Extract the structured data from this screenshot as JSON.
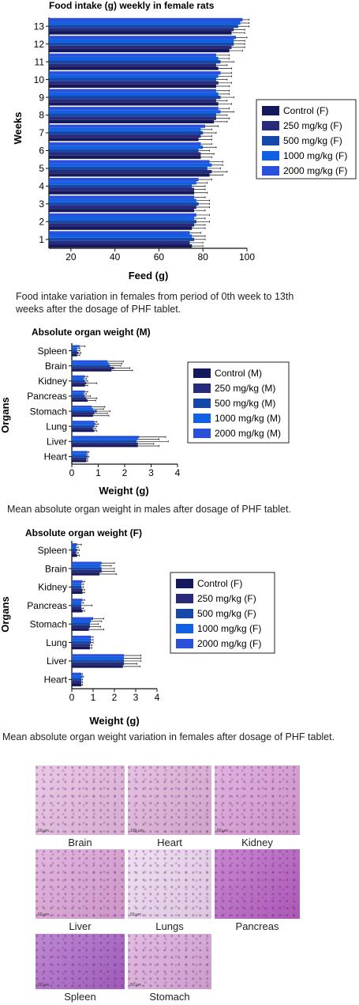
{
  "charts": {
    "food": {
      "title": "Food intake (g) weekly in female rats",
      "xlabel": "Feed (g)",
      "ylabel": "Weeks",
      "xticks": [
        "20",
        "40",
        "60",
        "80",
        "100"
      ],
      "caption": "Food intake variation in females from period of 0th week to 13th weeks after the dosage of PHF tablet."
    },
    "organs_m": {
      "title": "Absolute organ weight (M)",
      "xlabel": "Weight (g)",
      "ylabel": "Organs",
      "xticks": [
        "0",
        "1",
        "2",
        "3",
        "4"
      ],
      "caption": "Mean absolute organ weight in males after dosage of PHF tablet."
    },
    "organs_f": {
      "title": "Absolute organ weight (F)",
      "xlabel": "Weight (g)",
      "ylabel": "Organs",
      "xticks": [
        "0",
        "1",
        "2",
        "3",
        "4"
      ],
      "caption": "Mean absolute organ weight variation in females after dosage of PHF tablet."
    }
  },
  "colors": [
    "#15185a",
    "#2a2a7a",
    "#1548a8",
    "#1060e6",
    "#2a4fd8"
  ],
  "histology": {
    "tiles": [
      {
        "label": "Brain",
        "scale": "50 µm",
        "color": "#e2b8dc"
      },
      {
        "label": "Heart",
        "scale": "100 µm",
        "color": "#dcaed6"
      },
      {
        "label": "Kidney",
        "scale": "50 µm",
        "color": "#d79ad2"
      },
      {
        "label": "Liver",
        "scale": "50 µm",
        "color": "#d99fd2"
      },
      {
        "label": "Lungs",
        "scale": "50 µm",
        "color": "#ead3ec"
      },
      {
        "label": "Pancreas",
        "scale": "",
        "color": "#b55ec0"
      },
      {
        "label": "Spleen",
        "scale": "50 µm",
        "color": "#a761c3"
      },
      {
        "label": "Stomach",
        "scale": "50 µm",
        "color": "#d8a6d6"
      }
    ]
  },
  "chart_data": [
    {
      "type": "bar",
      "orientation": "horizontal",
      "title": "Food intake (g) weekly in female rats",
      "xlabel": "Feed (g)",
      "ylabel": "Weeks",
      "xlim": [
        10,
        100
      ],
      "categories": [
        "1",
        "2",
        "3",
        "4",
        "5",
        "6",
        "7",
        "8",
        "9",
        "10",
        "11",
        "12",
        "13"
      ],
      "legend_position": "right",
      "series": [
        {
          "name": "Control (F)",
          "values": [
            75,
            75,
            76,
            76,
            83,
            79,
            78,
            85,
            87,
            86,
            87,
            92,
            93
          ],
          "errors": [
            5,
            6,
            5,
            6,
            6,
            5,
            6,
            6,
            6,
            6,
            6,
            6,
            6
          ]
        },
        {
          "name": "250 mg/kg (F)",
          "values": [
            74,
            76,
            77,
            76,
            84,
            79,
            79,
            86,
            86,
            87,
            86,
            93,
            94
          ],
          "errors": [
            6,
            5,
            6,
            5,
            7,
            6,
            5,
            6,
            5,
            6,
            5,
            6,
            5
          ]
        },
        {
          "name": "500 mg/kg (F)",
          "values": [
            76,
            77,
            78,
            75,
            82,
            78,
            80,
            86,
            88,
            86,
            88,
            94,
            96
          ],
          "errors": [
            5,
            6,
            5,
            6,
            6,
            5,
            6,
            5,
            6,
            5,
            6,
            5,
            5
          ]
        },
        {
          "name": "1000 mg/kg (F)",
          "values": [
            75,
            76,
            77,
            77,
            84,
            80,
            79,
            88,
            87,
            87,
            87,
            94,
            97
          ],
          "errors": [
            6,
            5,
            6,
            5,
            5,
            6,
            5,
            6,
            5,
            6,
            5,
            5,
            4
          ]
        },
        {
          "name": "2000 mg/kg (F)",
          "values": [
            74,
            77,
            76,
            78,
            83,
            79,
            81,
            87,
            86,
            88,
            86,
            95,
            98
          ],
          "errors": [
            5,
            6,
            5,
            6,
            6,
            5,
            6,
            5,
            6,
            5,
            6,
            5,
            3
          ]
        }
      ]
    },
    {
      "type": "bar",
      "orientation": "horizontal",
      "title": "Absolute organ weight (M)",
      "xlabel": "Weight (g)",
      "ylabel": "Organs",
      "xlim": [
        0,
        4
      ],
      "categories": [
        "Heart",
        "Liver",
        "Lung",
        "Stomach",
        "Pancreas",
        "Kidney",
        "Brain",
        "Spleen"
      ],
      "legend_position": "right",
      "series": [
        {
          "name": "Control (M)",
          "values": [
            0.55,
            2.5,
            0.85,
            0.8,
            0.6,
            0.5,
            1.5,
            0.2
          ],
          "errors": [
            0.05,
            0.8,
            0.1,
            0.6,
            0.3,
            0.1,
            0.8,
            0.1
          ]
        },
        {
          "name": "250 mg/kg (M)",
          "values": [
            0.55,
            2.5,
            0.8,
            0.85,
            0.55,
            0.55,
            1.6,
            0.25
          ],
          "errors": [
            0.05,
            0.6,
            0.1,
            0.5,
            0.4,
            0.4,
            0.6,
            0.1
          ]
        },
        {
          "name": "500 mg/kg (M)",
          "values": [
            0.6,
            2.45,
            0.85,
            0.95,
            0.5,
            0.5,
            1.45,
            0.2
          ],
          "errors": [
            0.05,
            1.2,
            0.1,
            0.5,
            0.2,
            0.1,
            0.4,
            0.1
          ]
        },
        {
          "name": "1000 mg/kg (M)",
          "values": [
            0.55,
            2.5,
            0.9,
            0.8,
            0.45,
            0.45,
            1.4,
            0.2
          ],
          "errors": [
            0.05,
            0.8,
            0.1,
            0.4,
            0.1,
            0.1,
            0.5,
            0.1
          ]
        },
        {
          "name": "2000 mg/kg (M)",
          "values": [
            0.6,
            2.55,
            0.85,
            0.75,
            0.5,
            0.5,
            1.35,
            0.3
          ],
          "errors": [
            0.05,
            1.0,
            0.1,
            0.5,
            0.1,
            0.1,
            0.6,
            0.2
          ]
        }
      ]
    },
    {
      "type": "bar",
      "orientation": "horizontal",
      "title": "Absolute organ weight (F)",
      "xlabel": "Weight (g)",
      "ylabel": "Organs",
      "xlim": [
        0,
        4
      ],
      "categories": [
        "Heart",
        "Liver",
        "Lung",
        "Stomach",
        "Pancreas",
        "Kidney",
        "Brain",
        "Spleen"
      ],
      "legend_position": "right",
      "series": [
        {
          "name": "Control (F)",
          "values": [
            0.45,
            2.4,
            0.85,
            0.8,
            0.5,
            0.5,
            1.3,
            0.25
          ],
          "errors": [
            0.05,
            0.8,
            0.1,
            0.7,
            0.1,
            0.1,
            0.8,
            0.1
          ]
        },
        {
          "name": "250 mg/kg (F)",
          "values": [
            0.45,
            2.45,
            0.85,
            0.85,
            0.45,
            0.5,
            1.4,
            0.2
          ],
          "errors": [
            0.05,
            0.6,
            0.1,
            0.5,
            0.1,
            0.1,
            0.6,
            0.1
          ]
        },
        {
          "name": "500 mg/kg (F)",
          "values": [
            0.45,
            2.45,
            0.9,
            0.85,
            0.45,
            0.45,
            1.4,
            0.25
          ],
          "errors": [
            0.05,
            0.8,
            0.1,
            0.4,
            0.5,
            0.1,
            0.6,
            0.1
          ]
        },
        {
          "name": "1000 mg/kg (F)",
          "values": [
            0.5,
            2.45,
            0.9,
            0.9,
            0.45,
            0.45,
            1.35,
            0.2
          ],
          "errors": [
            0.05,
            0.8,
            0.1,
            0.5,
            0.1,
            0.1,
            0.5,
            0.1
          ]
        },
        {
          "name": "2000 mg/kg (F)",
          "values": [
            0.45,
            2.45,
            0.9,
            1.0,
            0.5,
            0.5,
            1.4,
            0.25
          ],
          "errors": [
            0.05,
            0.8,
            0.1,
            0.5,
            0.1,
            0.1,
            0.6,
            0.2
          ]
        }
      ]
    }
  ]
}
